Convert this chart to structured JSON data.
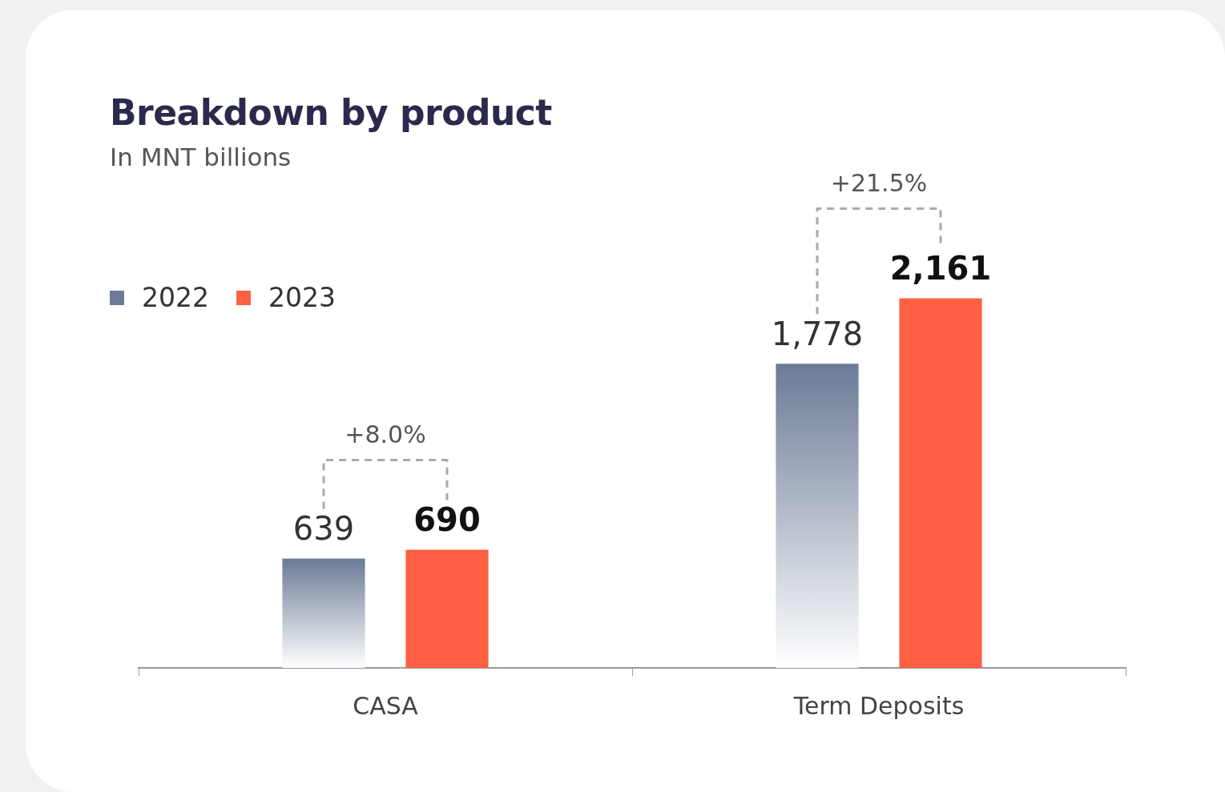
{
  "chart_data": {
    "type": "bar",
    "title": "Breakdown by product",
    "subtitle": "In MNT billions",
    "categories": [
      "CASA",
      "Term Deposits"
    ],
    "series": [
      {
        "name": "2022",
        "color": "#6b7b97",
        "values": [
          639,
          1778
        ],
        "value_labels": [
          "639",
          "1,778"
        ]
      },
      {
        "name": "2023",
        "color": "#ff5f43",
        "values": [
          690,
          2161
        ],
        "value_labels": [
          "690",
          "2,161"
        ]
      }
    ],
    "legend": "top left",
    "grid": false,
    "annotations": [
      "+8.0%",
      "+21.5%"
    ]
  }
}
